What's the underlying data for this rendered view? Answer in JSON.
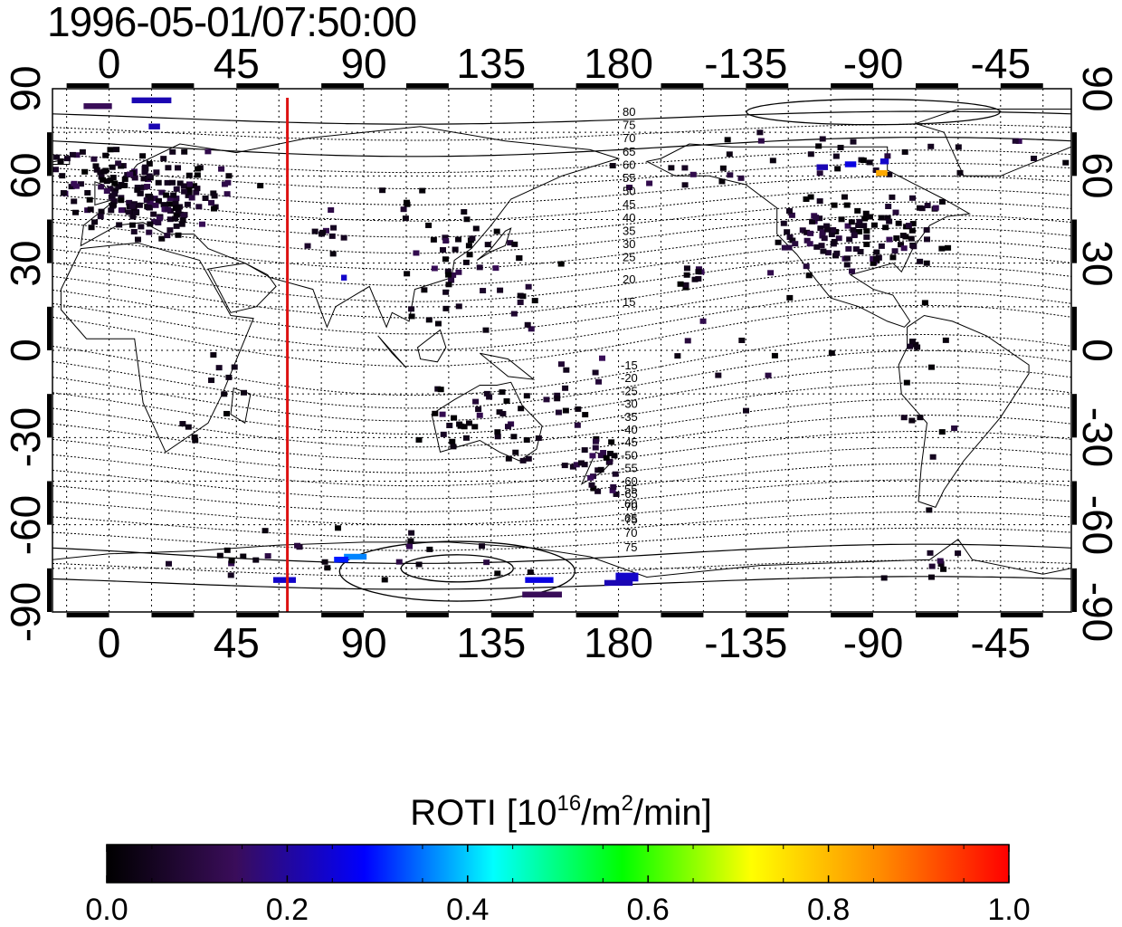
{
  "title": "1996-05-01/07:50:00",
  "map": {
    "x_axis_labels": [
      "0",
      "45",
      "90",
      "135",
      "180",
      "-135",
      "-90",
      "-45"
    ],
    "y_axis_labels": [
      "90",
      "60",
      "30",
      "0",
      "-30",
      "-60",
      "-90"
    ],
    "lon_range": [
      -20,
      340
    ],
    "lat_range": [
      -90,
      90
    ],
    "grid": "dotted, 15° lon / 15° lat",
    "marker_line_lon": 63,
    "marker_line_color": "#dd1111",
    "mlat_labels_north": [
      "80",
      "75",
      "70",
      "65",
      "60",
      "55",
      "50",
      "45",
      "40",
      "35",
      "30",
      "25",
      "20",
      "15"
    ],
    "mlat_labels_south": [
      "-15",
      "-20",
      "-25",
      "-30",
      "-35",
      "-40",
      "-45",
      "-50",
      "-55",
      "-60",
      "-65",
      "-70",
      "-75"
    ],
    "mlat_labels_south_alt": [
      "55",
      "60",
      "65",
      "70",
      "75"
    ],
    "clusters": [
      {
        "lon": 10,
        "lat": 55,
        "sx": 10,
        "sy": 7,
        "n": 130
      },
      {
        "lon": 20,
        "lat": 48,
        "sx": 6,
        "sy": 4,
        "n": 30
      },
      {
        "lon": -10,
        "lat": 62,
        "sx": 6,
        "sy": 5,
        "n": 18
      },
      {
        "lon": 35,
        "lat": 56,
        "sx": 10,
        "sy": 4,
        "n": 18
      },
      {
        "lon": 75,
        "lat": 41,
        "sx": 6,
        "sy": 3,
        "n": 10
      },
      {
        "lon": 105,
        "lat": 52,
        "sx": 4,
        "sy": 3,
        "n": 6
      },
      {
        "lon": 130,
        "lat": 36,
        "sx": 8,
        "sy": 5,
        "n": 18
      },
      {
        "lon": 118,
        "lat": 20,
        "sx": 6,
        "sy": 10,
        "n": 22
      },
      {
        "lon": 148,
        "lat": 20,
        "sx": 8,
        "sy": 8,
        "n": 12
      },
      {
        "lon": 130,
        "lat": -25,
        "sx": 15,
        "sy": 6,
        "n": 40
      },
      {
        "lon": 173,
        "lat": -40,
        "sx": 5,
        "sy": 5,
        "n": 28
      },
      {
        "lon": 160,
        "lat": -20,
        "sx": 6,
        "sy": 6,
        "n": 8
      },
      {
        "lon": 250,
        "lat": 40,
        "sx": 7,
        "sy": 6,
        "n": 45
      },
      {
        "lon": 275,
        "lat": 40,
        "sx": 10,
        "sy": 7,
        "n": 70
      },
      {
        "lon": 265,
        "lat": 67,
        "sx": 28,
        "sy": 4,
        "n": 28
      },
      {
        "lon": 205,
        "lat": 60,
        "sx": 15,
        "sy": 4,
        "n": 10
      },
      {
        "lon": 205,
        "lat": 25,
        "sx": 4,
        "sy": 4,
        "n": 10
      },
      {
        "lon": 290,
        "lat": -20,
        "sx": 6,
        "sy": 15,
        "n": 15
      },
      {
        "lon": 300,
        "lat": -73,
        "sx": 14,
        "sy": 3,
        "n": 8
      },
      {
        "lon": 80,
        "lat": -70,
        "sx": 30,
        "sy": 4,
        "n": 26
      },
      {
        "lon": 40,
        "lat": -10,
        "sx": 5,
        "sy": 6,
        "n": 8
      },
      {
        "lon": 28,
        "lat": -25,
        "sx": 4,
        "sy": 3,
        "n": 4
      },
      {
        "lon": 230,
        "lat": 5,
        "sx": 25,
        "sy": 10,
        "n": 8
      },
      {
        "lon": 180,
        "lat": 0,
        "sx": 30,
        "sy": 12,
        "n": 10
      }
    ],
    "highlight_blocks": [
      {
        "lon": 15,
        "lat": 86,
        "w": 14,
        "h": 2,
        "value": 0.22
      },
      {
        "lon": -4,
        "lat": 84,
        "w": 10,
        "h": 2,
        "value": 0.14
      },
      {
        "lon": 16,
        "lat": 77,
        "w": 4,
        "h": 2,
        "value": 0.22
      },
      {
        "lon": 273,
        "lat": 61,
        "w": 4,
        "h": 2,
        "value": 0.82
      },
      {
        "lon": 262,
        "lat": 64,
        "w": 4,
        "h": 2,
        "value": 0.26
      },
      {
        "lon": 252,
        "lat": 63,
        "w": 4,
        "h": 2,
        "value": 0.22
      },
      {
        "lon": 274,
        "lat": 65,
        "w": 3,
        "h": 2,
        "value": 0.24
      },
      {
        "lon": 87,
        "lat": -71,
        "w": 8,
        "h": 2,
        "value": 0.36
      },
      {
        "lon": 82,
        "lat": -72,
        "w": 5,
        "h": 2,
        "value": 0.3
      },
      {
        "lon": 62,
        "lat": -79,
        "w": 8,
        "h": 2,
        "value": 0.24
      },
      {
        "lon": 152,
        "lat": -79,
        "w": 10,
        "h": 2,
        "value": 0.26
      },
      {
        "lon": 183,
        "lat": -78,
        "w": 8,
        "h": 3,
        "value": 0.24
      },
      {
        "lon": 180,
        "lat": -80,
        "w": 10,
        "h": 2,
        "value": 0.22
      },
      {
        "lon": 153,
        "lat": -84,
        "w": 14,
        "h": 2,
        "value": 0.14
      },
      {
        "lon": 83,
        "lat": 25,
        "w": 2,
        "h": 2,
        "value": 0.24
      }
    ]
  },
  "colorbar": {
    "title_main": "ROTI  [10",
    "title_sup1": "16",
    "title_mid": "/m",
    "title_sup2": "2",
    "title_end": "/min]",
    "ticks": [
      "0.0",
      "0.2",
      "0.4",
      "0.6",
      "0.8",
      "1.0"
    ],
    "range": [
      0.0,
      1.0
    ],
    "stops": [
      "#000000",
      "#3a0d5a",
      "#0000ff",
      "#00ffff",
      "#00ff00",
      "#ffff00",
      "#ff8c00",
      "#ff0000"
    ]
  }
}
